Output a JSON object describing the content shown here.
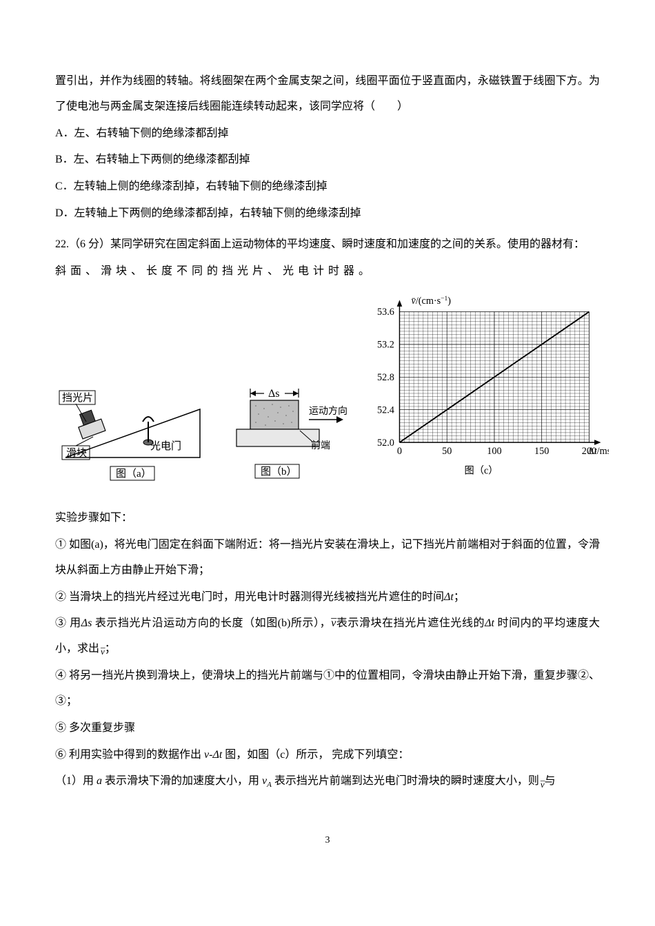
{
  "intro": "置引出，并作为线圈的转轴。将线圈架在两个金属支架之间，线圈平面位于竖直面内，永磁铁置于线圈下方。为了使电池与两金属支架连接后线圈能连续转动起来，该同学应将（　　）",
  "options": {
    "A": "A．左、右转轴下侧的绝缘漆都刮掉",
    "B": "B．左、右转轴上下两侧的绝缘漆都刮掉",
    "C": "C．左转轴上侧的绝缘漆刮掉，右转轴下侧的绝缘漆刮掉",
    "D": "D．左转轴上下两侧的绝缘漆都刮掉，右转轴下侧的绝缘漆刮掉"
  },
  "q22": {
    "number": "22.（6 分）某同学研究在固定斜面上运动物体的平均速度、瞬时速度和加速度的之间的关系。使用的器材有：",
    "materials": "斜面、滑块、长度不同的挡光片、光电计时器。",
    "fig_labels": {
      "a": "图（a）",
      "b": "图（b）",
      "c": "图（c）",
      "blocker": "挡光片",
      "slider": "滑块",
      "gate": "光电门",
      "delta_s": "Δs",
      "direction": "运动方向",
      "front": "前端"
    },
    "chart": {
      "type": "line",
      "y_label": "v̄/(cm·s⁻¹)",
      "x_label": "Δt/ms",
      "y_ticks": [
        52.0,
        52.4,
        52.8,
        53.2,
        53.6
      ],
      "x_ticks": [
        0,
        50,
        100,
        150,
        200
      ],
      "xlim": [
        0,
        200
      ],
      "ylim": [
        52.0,
        53.6
      ],
      "minor_grid_step_x": 5,
      "minor_grid_step_y": 0.04,
      "line_color": "#000000",
      "grid_color": "#000000",
      "background": "#ffffff",
      "line_start": [
        0,
        52.0
      ],
      "line_end": [
        200,
        53.6
      ]
    },
    "steps_title": "实验步骤如下：",
    "steps": {
      "s1": "① 如图(a)，将光电门固定在斜面下端附近：将一挡光片安装在滑块上，记下挡光片前端相对于斜面的位置，令滑块从斜面上方由静止开始下滑；",
      "s2_pre": "② 当滑块上的挡光片经过光电门时，用光电计时器测得光线被挡光片遮住的时间",
      "s2_post": "；",
      "s3_a": "③ 用",
      "s3_b": " 表示挡光片沿运动方向的长度（如图(b)所示），",
      "s3_c": "表示滑块在挡光片遮住光线的",
      "s3_d": " 时间内的平均速度大小，求出",
      "s3_e": "；",
      "s4": "④ 将另一挡光片换到滑块上，使滑块上的挡光片前端与①中的位置相同，令滑块由静止开始下滑，重复步骤②、③；",
      "s5": "⑤ 多次重复步骤",
      "s6_a": "⑥ 利用实验中得到的数据作出 ",
      "s6_b": " 图，如图（c）所示，  完成下列填空：",
      "q1_a": "（1）用 ",
      "q1_b": " 表示滑块下滑的加速度大小，用 ",
      "q1_c": " 表示挡光片前端到达光电门时滑块的瞬时速度大小，则",
      "q1_d": "与"
    }
  },
  "symbols": {
    "delta_t": "Δt",
    "delta_s": "Δs",
    "v": "v",
    "a": "a",
    "vA": "v",
    "vA_sub": "A",
    "v_dt": "v-Δt"
  },
  "page": "3"
}
